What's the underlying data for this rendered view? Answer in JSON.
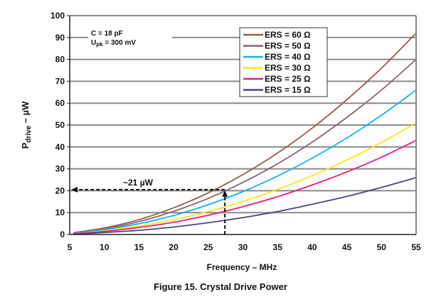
{
  "chart_data": {
    "type": "line",
    "title": "Figure 15. Crystal Drive Power",
    "xlabel": "Frequency – MHz",
    "ylabel_main": "P",
    "ylabel_sub": "drive",
    "ylabel_unit": " – µW",
    "xlim": [
      5,
      55
    ],
    "ylim": [
      0,
      100
    ],
    "xticks": [
      5,
      10,
      15,
      20,
      25,
      30,
      35,
      40,
      45,
      50,
      55
    ],
    "yticks": [
      0,
      10,
      20,
      30,
      40,
      50,
      60,
      70,
      80,
      90,
      100
    ],
    "grid": "horizontal",
    "legend_position": "top-center",
    "conditions": {
      "line1": "C = 18 pF",
      "line2_main": "U",
      "line2_sub": "pk",
      "line2_rest": " = 300 mV"
    },
    "annotation": {
      "label": "~21 µW",
      "x": 27.4,
      "y": 20.5
    },
    "x": [
      5,
      10,
      15,
      20,
      25,
      30,
      35,
      40,
      45,
      50,
      55
    ],
    "series": [
      {
        "name": "ERS = 60 Ω",
        "color": "#9b5a44",
        "values": [
          0.8,
          3.0,
          6.8,
          12.2,
          19.0,
          27.4,
          37.2,
          48.6,
          61.6,
          76.0,
          92.0
        ]
      },
      {
        "name": "ERS = 50 Ω",
        "color": "#8a6478",
        "values": [
          0.7,
          2.6,
          5.9,
          10.6,
          16.5,
          23.8,
          32.3,
          42.2,
          53.5,
          66.0,
          80.0
        ]
      },
      {
        "name": "ERS = 40 Ω",
        "color": "#12b4ea",
        "values": [
          0.5,
          2.2,
          4.9,
          8.7,
          13.6,
          19.6,
          26.7,
          34.9,
          44.1,
          54.5,
          66.0
        ]
      },
      {
        "name": "ERS = 30 Ω",
        "color": "#f7e81a",
        "values": [
          0.4,
          1.7,
          3.8,
          6.7,
          10.5,
          15.1,
          20.6,
          26.9,
          34.0,
          42.0,
          51.0
        ]
      },
      {
        "name": "ERS = 25 Ω",
        "color": "#ec1b87",
        "values": [
          0.4,
          1.4,
          3.2,
          5.6,
          8.8,
          12.7,
          17.3,
          22.6,
          28.6,
          35.3,
          43.0
        ]
      },
      {
        "name": "ERS = 15 Ω",
        "color": "#4a4680",
        "values": [
          0.2,
          0.9,
          1.9,
          3.4,
          5.4,
          7.7,
          10.5,
          13.8,
          17.4,
          21.5,
          26.0
        ]
      }
    ]
  }
}
